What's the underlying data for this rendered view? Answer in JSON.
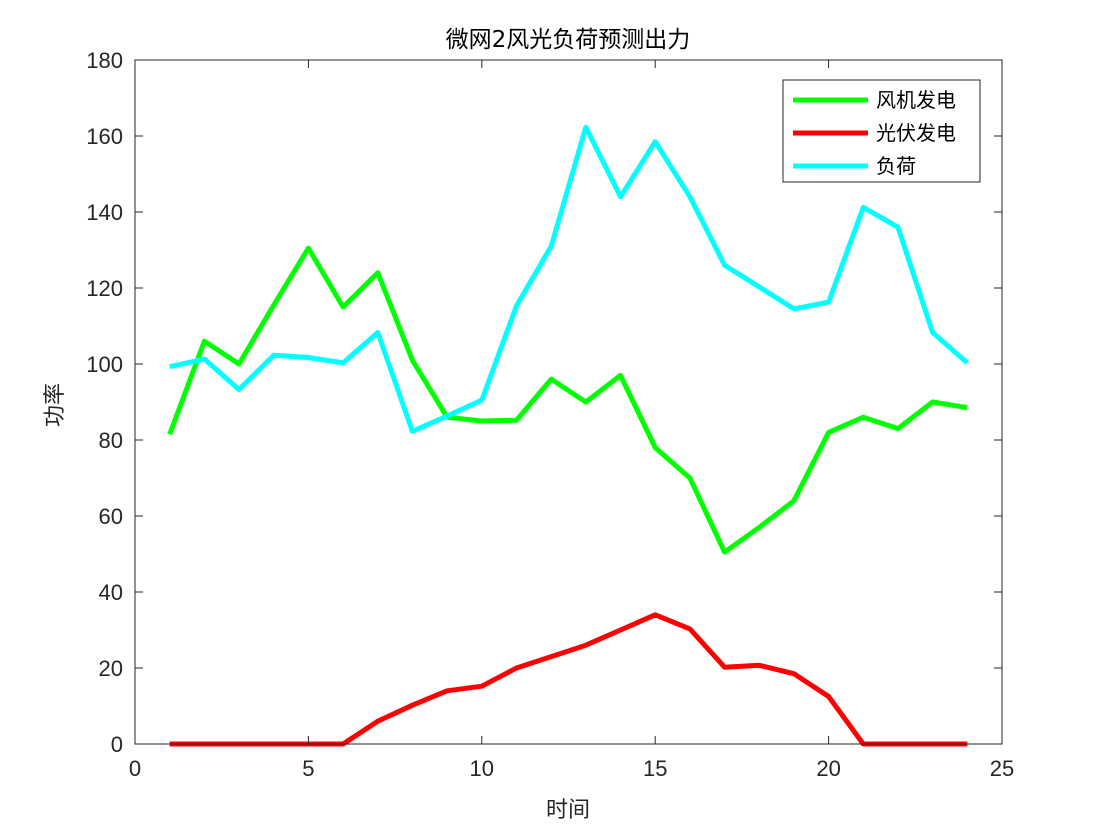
{
  "chart_data": {
    "type": "line",
    "title": "微网2风光负荷预测出力",
    "xlabel": "时间",
    "ylabel": "功率",
    "xlim": [
      0,
      25
    ],
    "ylim": [
      0,
      180
    ],
    "xticks": [
      0,
      5,
      10,
      15,
      20,
      25
    ],
    "yticks": [
      0,
      20,
      40,
      60,
      80,
      100,
      120,
      140,
      160,
      180
    ],
    "grid": false,
    "legend_position": "top-right",
    "x": [
      1,
      2,
      3,
      4,
      5,
      6,
      7,
      8,
      9,
      10,
      11,
      12,
      13,
      14,
      15,
      16,
      17,
      18,
      19,
      20,
      21,
      22,
      23,
      24
    ],
    "series": [
      {
        "name": "风机发电",
        "color": "#00ff00",
        "values": [
          81.5,
          106,
          100,
          115.5,
          130.5,
          115,
          124,
          101,
          86,
          85,
          85.2,
          96,
          90,
          97,
          78,
          70,
          50.5,
          57,
          64,
          82,
          86,
          83,
          90,
          88.5
        ]
      },
      {
        "name": "光伏发电",
        "color": "#ff0000",
        "values": [
          0,
          0,
          0,
          0,
          0,
          0,
          6,
          10.2,
          14,
          15.2,
          20,
          23,
          26,
          30,
          34,
          30.3,
          20.2,
          20.7,
          18.5,
          12.5,
          0,
          0,
          0,
          0
        ]
      },
      {
        "name": "负荷",
        "color": "#00ffff",
        "values": [
          99.3,
          101.3,
          93.3,
          102.3,
          101.7,
          100.3,
          108.3,
          82.3,
          86.3,
          90.5,
          115.3,
          131,
          162.3,
          144,
          158.5,
          144,
          126,
          120.3,
          114.5,
          116.3,
          141.2,
          136,
          108.3,
          100.3
        ]
      }
    ]
  }
}
